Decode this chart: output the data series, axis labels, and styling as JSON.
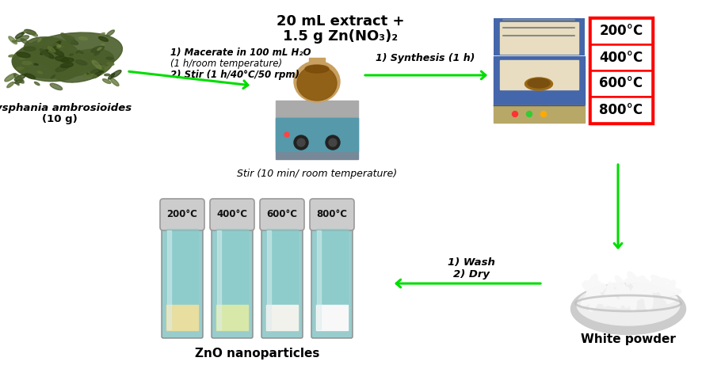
{
  "bg_color": "#ffffff",
  "plant_label_line1": "Dysphania ambrosioides",
  "plant_label_line2": "(10 g)",
  "arrow1_text_line1": "1) Macerate in 100 mL H₂O",
  "arrow1_text_line2": "(1 h/room temperature)",
  "arrow1_text_line3": "2) Stir (1 h/40°C/50 rpm)",
  "top_center_line1": "20 mL extract +",
  "top_center_line2": "1.5 g Zn(NO₃)₂",
  "stir_label": "Stir (10 min/ room temperature)",
  "arrow2_text": "1) Synthesis (1 h)",
  "temp_labels": [
    "200°C",
    "400°C",
    "600°C",
    "800°C"
  ],
  "wash_dry_text_line1": "1) Wash",
  "wash_dry_text_line2": "2) Dry",
  "white_powder_label": "White powder",
  "vial_labels": [
    "200°C",
    "400°C",
    "600°C",
    "800°C"
  ],
  "zno_label": "ZnO nanoparticles",
  "arrow_color": "#00dd00",
  "temp_box_color": "#ff0000",
  "label_color": "#000000",
  "vial_body_color": "#99cccc",
  "vial_cap_color": "#bbbbbb",
  "vial_sediment_colors": [
    "#e8dea0",
    "#d8e8a8",
    "#f2f2ec",
    "#f8f8f8"
  ],
  "plant_colors": [
    "#4a5e2a",
    "#3a4e20",
    "#5a6e30",
    "#2a3e10",
    "#6a7e40"
  ],
  "furnace_blue": "#4466aa",
  "furnace_inner": "#e8ddc0",
  "stirrer_teal": "#5599aa",
  "stirrer_gray": "#778899"
}
